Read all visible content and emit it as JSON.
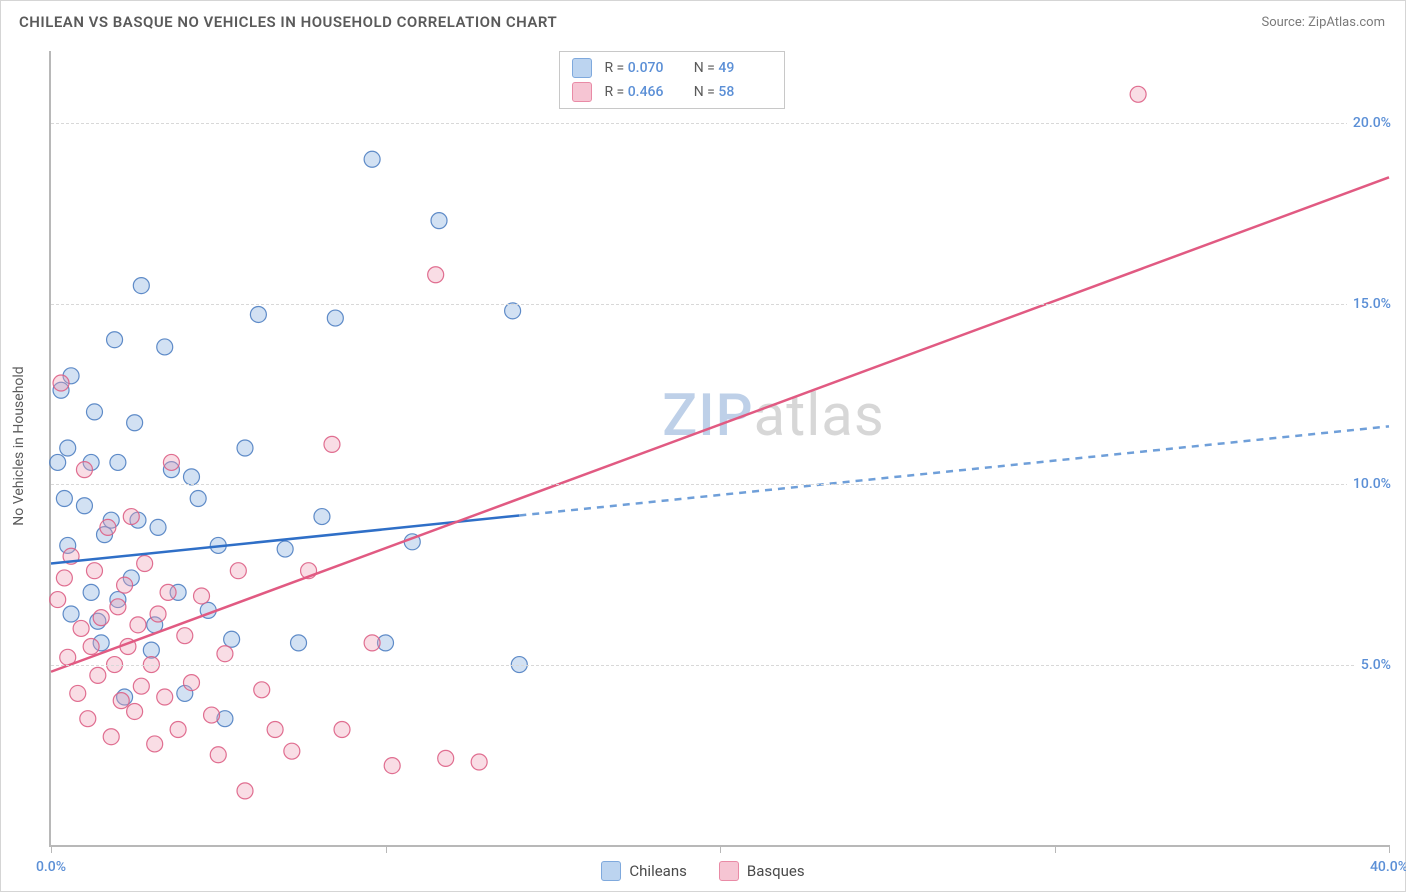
{
  "title": "CHILEAN VS BASQUE NO VEHICLES IN HOUSEHOLD CORRELATION CHART",
  "source": "Source: ZipAtlas.com",
  "y_axis_label": "No Vehicles in Household",
  "watermark": {
    "part1": "ZIP",
    "part2": "atlas"
  },
  "chart": {
    "type": "scatter-with-regression",
    "xlim": [
      0,
      40
    ],
    "ylim": [
      0,
      22
    ],
    "background_color": "#ffffff",
    "grid_color": "#d8d8d8",
    "axis_color": "#b8b8b8",
    "tick_label_color": "#5b8fd6",
    "y_gridlines": [
      5,
      10,
      15,
      20
    ],
    "y_tick_labels": [
      "5.0%",
      "10.0%",
      "15.0%",
      "20.0%"
    ],
    "x_ticks": [
      0,
      10,
      20,
      30,
      40
    ],
    "x_tick_labels": {
      "0": "0.0%",
      "40": "40.0%"
    },
    "marker_radius": 8,
    "marker_fill_opacity": 0.35,
    "marker_stroke_opacity": 0.9,
    "marker_stroke_width": 1.2,
    "line_width": 2.5
  },
  "series": [
    {
      "key": "chileans",
      "label": "Chileans",
      "swatch_fill": "#bcd4f0",
      "swatch_stroke": "#7fa9dd",
      "marker_fill": "#7fa9dd",
      "marker_stroke": "#4f7fc2",
      "line_color": "#2f6fc7",
      "dash_color": "#6f9fd9",
      "R": "0.070",
      "N": "49",
      "regression": {
        "x1": 0,
        "y1": 7.8,
        "x2": 40,
        "y2": 11.6,
        "solid_until_x": 14
      },
      "points": [
        [
          0.2,
          10.6
        ],
        [
          0.3,
          12.6
        ],
        [
          0.4,
          9.6
        ],
        [
          0.5,
          11.0
        ],
        [
          0.5,
          8.3
        ],
        [
          0.6,
          6.4
        ],
        [
          0.6,
          13.0
        ],
        [
          1.0,
          9.4
        ],
        [
          1.2,
          10.6
        ],
        [
          1.2,
          7.0
        ],
        [
          1.3,
          12.0
        ],
        [
          1.4,
          6.2
        ],
        [
          1.5,
          5.6
        ],
        [
          1.6,
          8.6
        ],
        [
          1.8,
          9.0
        ],
        [
          1.9,
          14.0
        ],
        [
          2.0,
          6.8
        ],
        [
          2.0,
          10.6
        ],
        [
          2.2,
          4.1
        ],
        [
          2.4,
          7.4
        ],
        [
          2.5,
          11.7
        ],
        [
          2.6,
          9.0
        ],
        [
          2.7,
          15.5
        ],
        [
          3.0,
          5.4
        ],
        [
          3.1,
          6.1
        ],
        [
          3.2,
          8.8
        ],
        [
          3.4,
          13.8
        ],
        [
          3.6,
          10.4
        ],
        [
          3.8,
          7.0
        ],
        [
          4.0,
          4.2
        ],
        [
          4.2,
          10.2
        ],
        [
          4.4,
          9.6
        ],
        [
          4.7,
          6.5
        ],
        [
          5.0,
          8.3
        ],
        [
          5.2,
          3.5
        ],
        [
          5.4,
          5.7
        ],
        [
          5.8,
          11.0
        ],
        [
          6.2,
          14.7
        ],
        [
          7.0,
          8.2
        ],
        [
          7.4,
          5.6
        ],
        [
          8.1,
          9.1
        ],
        [
          8.5,
          14.6
        ],
        [
          9.6,
          19.0
        ],
        [
          10.0,
          5.6
        ],
        [
          10.8,
          8.4
        ],
        [
          11.6,
          17.3
        ],
        [
          13.8,
          14.8
        ],
        [
          14.0,
          5.0
        ]
      ]
    },
    {
      "key": "basques",
      "label": "Basques",
      "swatch_fill": "#f6c5d3",
      "swatch_stroke": "#e98ba6",
      "marker_fill": "#ef9eb4",
      "marker_stroke": "#dd5f85",
      "line_color": "#e15a82",
      "R": "0.466",
      "N": "58",
      "regression": {
        "x1": 0,
        "y1": 4.8,
        "x2": 40,
        "y2": 18.5
      },
      "points": [
        [
          0.2,
          6.8
        ],
        [
          0.3,
          12.8
        ],
        [
          0.4,
          7.4
        ],
        [
          0.5,
          5.2
        ],
        [
          0.6,
          8.0
        ],
        [
          0.8,
          4.2
        ],
        [
          0.9,
          6.0
        ],
        [
          1.0,
          10.4
        ],
        [
          1.1,
          3.5
        ],
        [
          1.2,
          5.5
        ],
        [
          1.3,
          7.6
        ],
        [
          1.4,
          4.7
        ],
        [
          1.5,
          6.3
        ],
        [
          1.7,
          8.8
        ],
        [
          1.8,
          3.0
        ],
        [
          1.9,
          5.0
        ],
        [
          2.0,
          6.6
        ],
        [
          2.1,
          4.0
        ],
        [
          2.2,
          7.2
        ],
        [
          2.3,
          5.5
        ],
        [
          2.4,
          9.1
        ],
        [
          2.5,
          3.7
        ],
        [
          2.6,
          6.1
        ],
        [
          2.7,
          4.4
        ],
        [
          2.8,
          7.8
        ],
        [
          3.0,
          5.0
        ],
        [
          3.1,
          2.8
        ],
        [
          3.2,
          6.4
        ],
        [
          3.4,
          4.1
        ],
        [
          3.5,
          7.0
        ],
        [
          3.6,
          10.6
        ],
        [
          3.8,
          3.2
        ],
        [
          4.0,
          5.8
        ],
        [
          4.2,
          4.5
        ],
        [
          4.5,
          6.9
        ],
        [
          4.8,
          3.6
        ],
        [
          5.0,
          2.5
        ],
        [
          5.2,
          5.3
        ],
        [
          5.6,
          7.6
        ],
        [
          5.8,
          1.5
        ],
        [
          6.3,
          4.3
        ],
        [
          6.7,
          3.2
        ],
        [
          7.2,
          2.6
        ],
        [
          7.7,
          7.6
        ],
        [
          8.4,
          11.1
        ],
        [
          8.7,
          3.2
        ],
        [
          9.6,
          5.6
        ],
        [
          10.2,
          2.2
        ],
        [
          11.5,
          15.8
        ],
        [
          11.8,
          2.4
        ],
        [
          12.8,
          2.3
        ],
        [
          32.5,
          20.8
        ]
      ]
    }
  ],
  "legend_top": {
    "R_label": "R =",
    "N_label": "N ="
  },
  "legend_bottom_labels": [
    "Chileans",
    "Basques"
  ]
}
